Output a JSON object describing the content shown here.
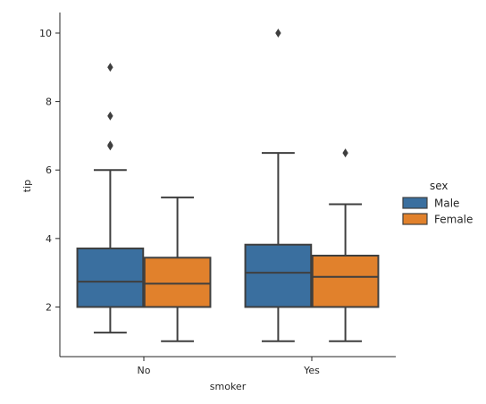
{
  "chart_data": {
    "type": "box",
    "xlabel": "smoker",
    "ylabel": "tip",
    "categories": [
      "No",
      "Yes"
    ],
    "ylim": [
      0.55,
      10.6
    ],
    "yticks": [
      2,
      4,
      6,
      8,
      10
    ],
    "legend": {
      "title": "sex",
      "position": "right"
    },
    "series": [
      {
        "name": "Male",
        "color": "#3a6f9f",
        "boxes": [
          {
            "category": "No",
            "whisker_low": 1.25,
            "q1": 2.0,
            "median": 2.74,
            "q3": 3.71,
            "whisker_high": 6.0,
            "outliers": [
              6.7,
              6.73,
              7.58,
              9.0
            ]
          },
          {
            "category": "Yes",
            "whisker_low": 1.0,
            "q1": 2.0,
            "median": 3.0,
            "q3": 3.82,
            "whisker_high": 6.5,
            "outliers": [
              10.0
            ]
          }
        ]
      },
      {
        "name": "Female",
        "color": "#e1812c",
        "boxes": [
          {
            "category": "No",
            "whisker_low": 1.0,
            "q1": 2.0,
            "median": 2.68,
            "q3": 3.44,
            "whisker_high": 5.2,
            "outliers": []
          },
          {
            "category": "Yes",
            "whisker_low": 1.0,
            "q1": 2.0,
            "median": 2.88,
            "q3": 3.5,
            "whisker_high": 5.0,
            "outliers": [
              6.5
            ]
          }
        ]
      }
    ]
  }
}
